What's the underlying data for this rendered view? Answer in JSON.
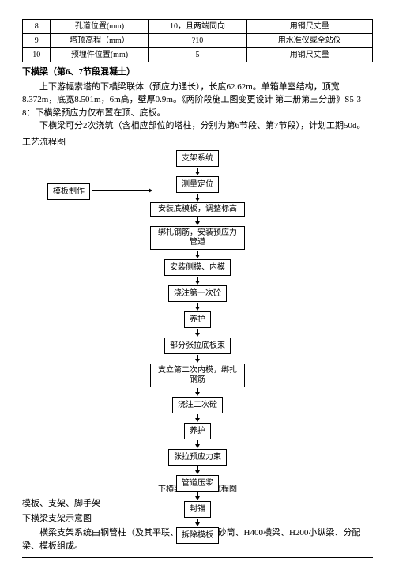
{
  "table": {
    "rows": [
      {
        "n": "8",
        "a": "孔道位置(mm)",
        "b": "10，且两端同向",
        "c": "用钢尺丈量"
      },
      {
        "n": "9",
        "a": "塔顶高程（mm）",
        "b": "?10",
        "c": "用水准仪或全站仪"
      },
      {
        "n": "10",
        "a": "预埋件位置(mm)",
        "b": "5",
        "c": "用钢尺丈量"
      }
    ]
  },
  "doc": {
    "heading": "下横梁（第6、7节段混凝土）",
    "p1": "上下游幅索塔的下横梁联体（预应力通长），长度62.62m。单箱单室结构，顶宽8.372m，底宽8.501m，6m高，壁厚0.9m。《两阶段施工图变更设计 第二册第三分册》S5-3-8：下横梁预应力仅布置在顶、底板。",
    "p2": "下横梁可分2次浇筑（含相应部位的塔柱，分别为第6节段、第7节段），计划工期50d。",
    "flow_label": "工艺流程图",
    "flow_caption": "下横梁施工工艺流程图",
    "side_box": "模板制作",
    "b1": "模板、支架、脚手架",
    "b2": "下横梁支架示意图",
    "b3": "横梁支架系统由钢管柱（及其平联、纵联）、钢砂筒、H400横梁、H200小纵梁、分配梁、模板组成。"
  },
  "flow": {
    "steps": [
      "支架系统",
      "测量定位",
      "安装底模板，调整标高",
      "绑扎钢筋，安装预应力管道",
      "安装侧模、内模",
      "浇注第一次砼",
      "养护",
      "部分张拉底板束",
      "支立第二次内模，绑扎钢筋",
      "浇注二次砼",
      "养护",
      "张拉预应力束",
      "管道压浆",
      "封锚",
      "拆除模板"
    ]
  }
}
